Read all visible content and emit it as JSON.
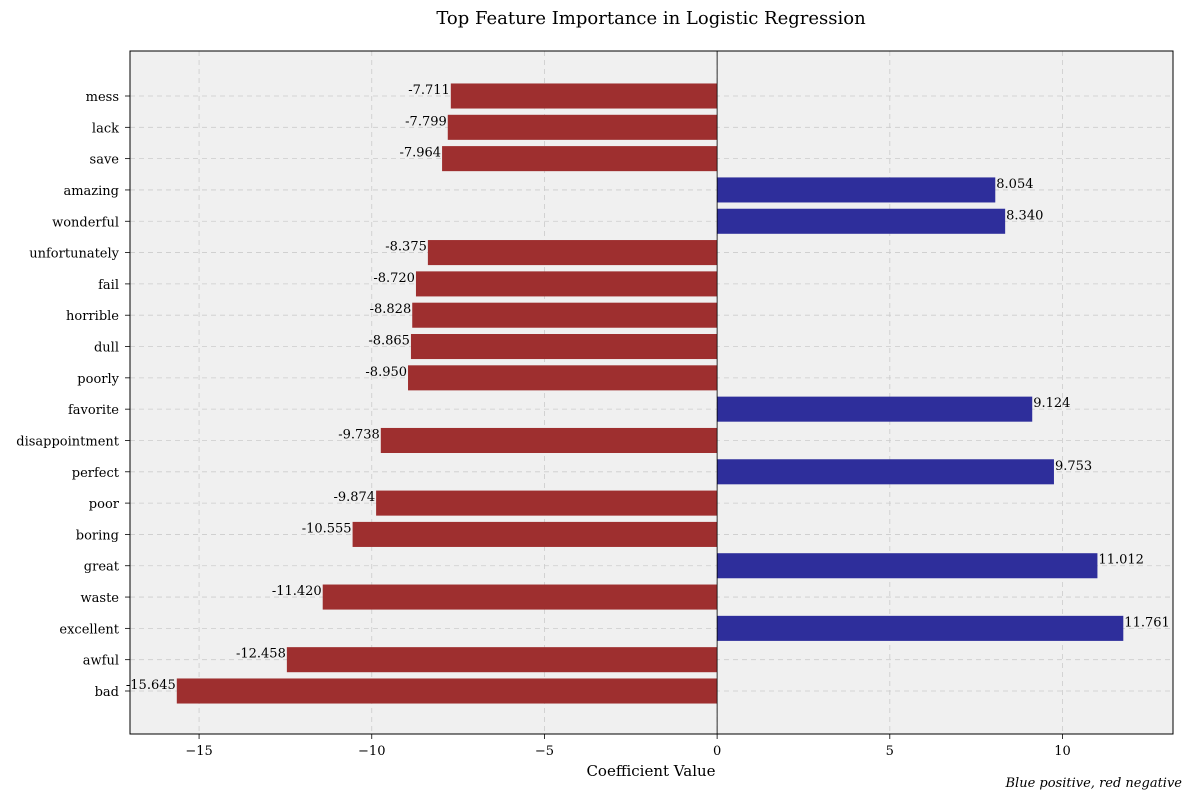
{
  "chart_data": {
    "type": "bar",
    "orientation": "horizontal",
    "title": "Top Feature Importance in Logistic Regression",
    "xlabel": "Coefficient Value",
    "ylabel": "",
    "note": "Blue positive, red negative",
    "xlim": [
      -17,
      13.2
    ],
    "xticks": [
      -15,
      -10,
      -5,
      0,
      5,
      10
    ],
    "xtick_labels": [
      "−15",
      "−10",
      "−5",
      "0",
      "5",
      "10"
    ],
    "grid": true,
    "positive_color": "#2e2e9b",
    "negative_color": "#9e2f2f",
    "plot_background": "#f0f0f0",
    "categories": [
      "mess",
      "lack",
      "save",
      "amazing",
      "wonderful",
      "unfortunately",
      "fail",
      "horrible",
      "dull",
      "poorly",
      "favorite",
      "disappointment",
      "perfect",
      "poor",
      "boring",
      "great",
      "waste",
      "excellent",
      "awful",
      "bad"
    ],
    "values": [
      -7.711,
      -7.799,
      -7.964,
      8.054,
      8.34,
      -8.375,
      -8.72,
      -8.828,
      -8.865,
      -8.95,
      9.124,
      -9.738,
      9.753,
      -9.874,
      -10.555,
      11.012,
      -11.42,
      11.761,
      -12.458,
      -15.645
    ],
    "value_labels": [
      "-7.711",
      "-7.799",
      "-7.964",
      "8.054",
      "8.340",
      "-8.375",
      "-8.720",
      "-8.828",
      "-8.865",
      "-8.950",
      "9.124",
      "-9.738",
      "9.753",
      "-9.874",
      "-10.555",
      "11.012",
      "-11.420",
      "11.761",
      "-12.458",
      "-15.645"
    ]
  }
}
